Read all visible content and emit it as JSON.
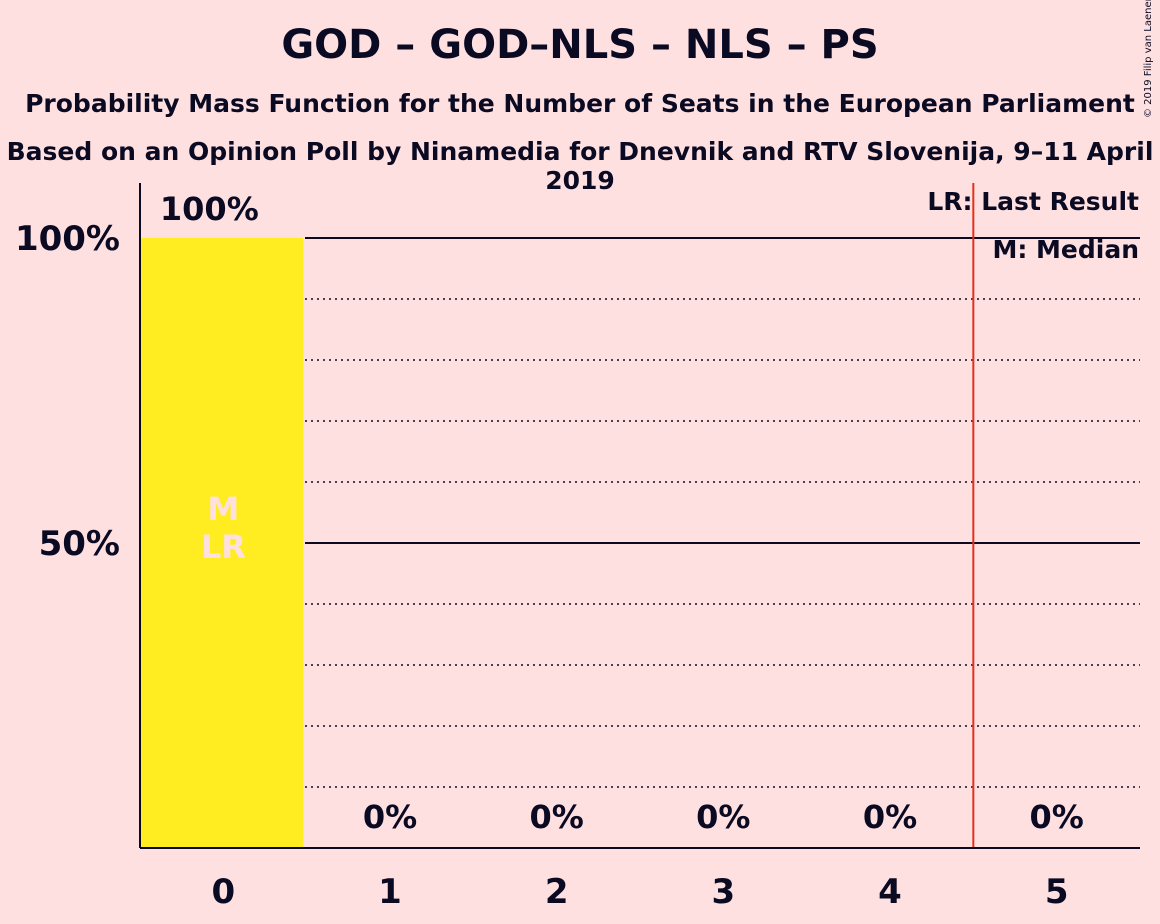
{
  "title": "GOD – GOD–NLS – NLS – PS",
  "subtitle": "Probability Mass Function for the Number of Seats in the European Parliament",
  "subtitle2": "Based on an Opinion Poll by Ninamedia for Dnevnik and RTV Slovenija, 9–11 April 2019",
  "copyright": "© 2019 Filip van Laenen",
  "colors": {
    "background": "#FFE0E1",
    "bar": "#FFED22",
    "last_result_line": "#E0301E",
    "text": "#0A0A23",
    "bar_marker_text": "#FFE0E1"
  },
  "chart_data": {
    "type": "bar",
    "categories": [
      "0",
      "1",
      "2",
      "3",
      "4",
      "5"
    ],
    "values": [
      100,
      0,
      0,
      0,
      0,
      0
    ],
    "data_labels": [
      "100%",
      "0%",
      "0%",
      "0%",
      "0%",
      "0%"
    ],
    "ylim": [
      0,
      100
    ],
    "yticks": [
      50,
      100
    ],
    "ytick_labels": [
      "50%",
      "100%"
    ],
    "grid": true,
    "last_result": 0,
    "median": 0,
    "last_result_line_at": 4.5,
    "bar_markers": [
      "M",
      "LR"
    ],
    "legend": [
      "LR: Last Result",
      "M: Median"
    ],
    "legend_position": "top-right"
  }
}
